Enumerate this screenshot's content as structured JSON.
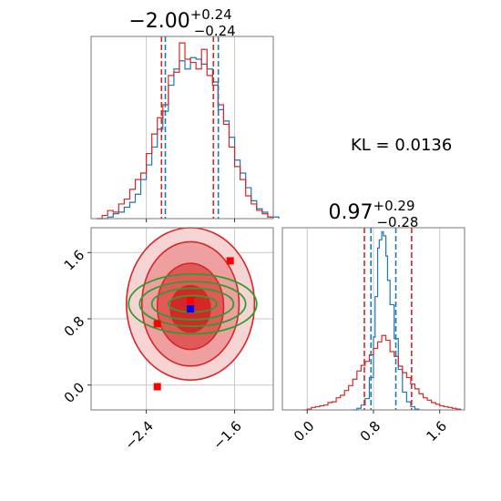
{
  "chart_data": {
    "type": "corner",
    "kl_label": "KL = 0.0136",
    "colors": {
      "blue": "#1f77b4",
      "red": "#d62728",
      "green": "#2ca02c",
      "grid": "#c8c8c8"
    },
    "params": [
      {
        "title_main": "−2.00",
        "title_sup": "+0.24",
        "title_sub": "−0.24",
        "range": [
          -2.9,
          -1.25
        ],
        "ticks": [
          -2.4,
          -1.6
        ],
        "tick_labels": [
          "−2.4",
          "−1.6"
        ],
        "quantiles_blue": [
          -2.24,
          -1.76
        ],
        "quantiles_red": [
          -2.25,
          -1.78
        ]
      },
      {
        "title_main": "0.97",
        "title_sup": "+0.29",
        "title_sub": "−0.28",
        "range": [
          -0.3,
          1.9
        ],
        "ticks": [
          0.0,
          0.8,
          1.6
        ],
        "tick_labels": [
          "0.0",
          "0.8",
          "1.6"
        ],
        "quantiles_blue": [
          0.77,
          1.07
        ],
        "quantiles_red": [
          0.69,
          1.26
        ]
      }
    ],
    "hist1_blue": [
      [
        -2.85,
        0
      ],
      [
        -2.75,
        1
      ],
      [
        -2.7,
        3
      ],
      [
        -2.65,
        4
      ],
      [
        -2.6,
        7
      ],
      [
        -2.55,
        10
      ],
      [
        -2.5,
        15
      ],
      [
        -2.45,
        24
      ],
      [
        -2.4,
        33
      ],
      [
        -2.35,
        44
      ],
      [
        -2.3,
        55
      ],
      [
        -2.25,
        66
      ],
      [
        -2.2,
        82
      ],
      [
        -2.15,
        92
      ],
      [
        -2.1,
        97
      ],
      [
        -2.05,
        92
      ],
      [
        -2.0,
        99
      ],
      [
        -1.95,
        98
      ],
      [
        -1.9,
        95
      ],
      [
        -1.85,
        92
      ],
      [
        -1.8,
        84
      ],
      [
        -1.75,
        67
      ],
      [
        -1.7,
        60
      ],
      [
        -1.65,
        50
      ],
      [
        -1.6,
        36
      ],
      [
        -1.55,
        28
      ],
      [
        -1.5,
        19
      ],
      [
        -1.45,
        11
      ],
      [
        -1.4,
        6
      ],
      [
        -1.35,
        4
      ],
      [
        -1.3,
        1
      ]
    ],
    "hist1_red": [
      [
        -2.85,
        0
      ],
      [
        -2.8,
        2
      ],
      [
        -2.75,
        5
      ],
      [
        -2.7,
        4
      ],
      [
        -2.65,
        9
      ],
      [
        -2.6,
        12
      ],
      [
        -2.55,
        18
      ],
      [
        -2.5,
        24
      ],
      [
        -2.45,
        28
      ],
      [
        -2.4,
        40
      ],
      [
        -2.35,
        52
      ],
      [
        -2.3,
        62
      ],
      [
        -2.25,
        70
      ],
      [
        -2.2,
        88
      ],
      [
        -2.15,
        90
      ],
      [
        -2.1,
        108
      ],
      [
        -2.05,
        98
      ],
      [
        -2.0,
        96
      ],
      [
        -1.95,
        92
      ],
      [
        -1.9,
        104
      ],
      [
        -1.85,
        88
      ],
      [
        -1.8,
        82
      ],
      [
        -1.75,
        70
      ],
      [
        -1.7,
        58
      ],
      [
        -1.65,
        44
      ],
      [
        -1.6,
        32
      ],
      [
        -1.55,
        24
      ],
      [
        -1.5,
        14
      ],
      [
        -1.45,
        9
      ],
      [
        -1.4,
        5
      ],
      [
        -1.35,
        3
      ],
      [
        -1.3,
        1
      ]
    ],
    "hist2_blue": [
      [
        0.55,
        0
      ],
      [
        0.6,
        2
      ],
      [
        0.65,
        6
      ],
      [
        0.7,
        14
      ],
      [
        0.75,
        40
      ],
      [
        0.8,
        90
      ],
      [
        0.82,
        140
      ],
      [
        0.85,
        200
      ],
      [
        0.87,
        210
      ],
      [
        0.9,
        220
      ],
      [
        0.92,
        215
      ],
      [
        0.95,
        190
      ],
      [
        0.97,
        160
      ],
      [
        1.0,
        130
      ],
      [
        1.05,
        88
      ],
      [
        1.1,
        50
      ],
      [
        1.15,
        22
      ],
      [
        1.2,
        10
      ],
      [
        1.25,
        4
      ],
      [
        1.3,
        1
      ]
    ],
    "hist2_red": [
      [
        -0.05,
        0
      ],
      [
        0.0,
        1
      ],
      [
        0.05,
        3
      ],
      [
        0.1,
        4
      ],
      [
        0.15,
        5
      ],
      [
        0.2,
        6
      ],
      [
        0.25,
        9
      ],
      [
        0.3,
        10
      ],
      [
        0.35,
        15
      ],
      [
        0.4,
        18
      ],
      [
        0.45,
        24
      ],
      [
        0.5,
        30
      ],
      [
        0.55,
        38
      ],
      [
        0.6,
        48
      ],
      [
        0.65,
        55
      ],
      [
        0.7,
        60
      ],
      [
        0.75,
        68
      ],
      [
        0.8,
        76
      ],
      [
        0.85,
        84
      ],
      [
        0.9,
        92
      ],
      [
        0.95,
        86
      ],
      [
        1.0,
        72
      ],
      [
        1.05,
        66
      ],
      [
        1.1,
        54
      ],
      [
        1.15,
        46
      ],
      [
        1.2,
        40
      ],
      [
        1.25,
        32
      ],
      [
        1.3,
        26
      ],
      [
        1.35,
        20
      ],
      [
        1.4,
        15
      ],
      [
        1.45,
        12
      ],
      [
        1.5,
        9
      ],
      [
        1.55,
        7
      ],
      [
        1.6,
        5
      ],
      [
        1.65,
        4
      ],
      [
        1.7,
        3
      ],
      [
        1.75,
        2
      ],
      [
        1.8,
        1
      ]
    ],
    "red_contours": [
      {
        "cx": -2.0,
        "cy": 0.92,
        "rx": 0.18,
        "ry": 0.28
      },
      {
        "cx": -2.0,
        "cy": 0.95,
        "rx": 0.3,
        "ry": 0.52
      },
      {
        "cx": -2.0,
        "cy": 0.98,
        "rx": 0.44,
        "ry": 0.75
      },
      {
        "cx": -2.0,
        "cy": 0.98,
        "rx": 0.58,
        "ry": 0.92
      }
    ],
    "green_contours": [
      {
        "cx": -1.98,
        "cy": 0.98,
        "rx": 0.22,
        "ry": 0.1
      },
      {
        "cx": -1.98,
        "cy": 0.98,
        "rx": 0.37,
        "ry": 0.19
      },
      {
        "cx": -1.98,
        "cy": 0.98,
        "rx": 0.48,
        "ry": 0.27
      },
      {
        "cx": -1.98,
        "cy": 0.98,
        "rx": 0.58,
        "ry": 0.36
      }
    ],
    "red_markers": [
      [
        -1.64,
        1.5
      ],
      [
        -2.0,
        1.02
      ],
      [
        -2.3,
        0.74
      ],
      [
        -2.3,
        -0.02
      ]
    ],
    "blue_markers": [
      [
        -2.0,
        0.92
      ]
    ]
  }
}
